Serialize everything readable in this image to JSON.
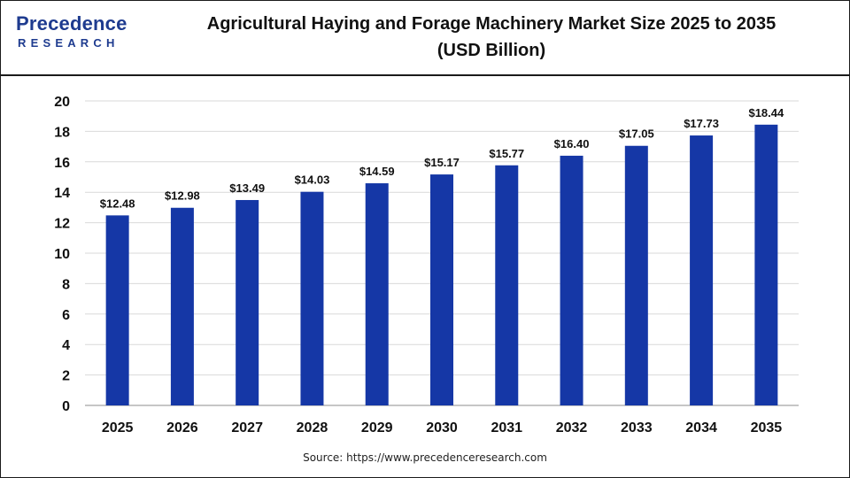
{
  "header": {
    "logo_main": "Precedence",
    "logo_sub": "RESEARCH",
    "title_line1": "Agricultural Haying and Forage Machinery Market Size 2025 to 2035",
    "title_line2": "(USD Billion)"
  },
  "colors": {
    "bar": "#1537a6",
    "grid": "#d9d9d9",
    "brand": "#1e3b8f"
  },
  "chart_data": {
    "type": "bar",
    "title": "Agricultural Haying and Forage Machinery Market Size 2025 to 2035 (USD Billion)",
    "categories": [
      "2025",
      "2026",
      "2027",
      "2028",
      "2029",
      "2030",
      "2031",
      "2032",
      "2033",
      "2034",
      "2035"
    ],
    "values": [
      12.48,
      12.98,
      13.49,
      14.03,
      14.59,
      15.17,
      15.77,
      16.4,
      17.05,
      17.73,
      18.44
    ],
    "data_labels": [
      "$12.48",
      "$12.98",
      "$13.49",
      "$14.03",
      "$14.59",
      "$15.17",
      "$15.77",
      "$16.40",
      "$17.05",
      "$17.73",
      "$18.44"
    ],
    "ylim": [
      0,
      20
    ],
    "yticks": [
      0,
      2,
      4,
      6,
      8,
      10,
      12,
      14,
      16,
      18,
      20
    ],
    "xlabel": "",
    "ylabel": "",
    "grid": true,
    "legend": "none"
  },
  "footer": {
    "source": "Source: https://www.precedenceresearch.com"
  }
}
